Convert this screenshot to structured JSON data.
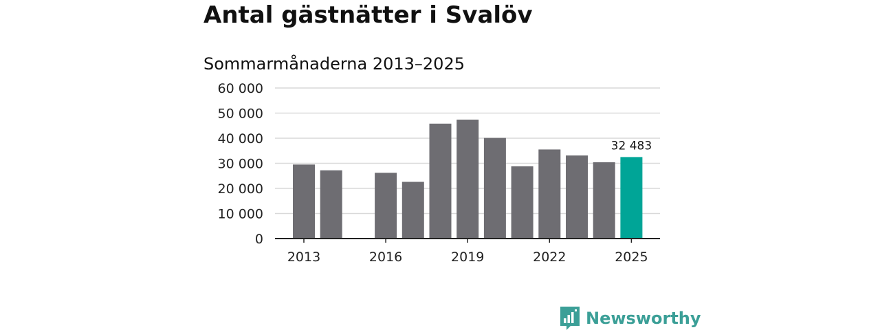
{
  "header": {
    "title": "Antal gästnätter i Svalöv",
    "subtitle": "Sommarmånaderna 2013–2025"
  },
  "brand": {
    "name": "Newsworthy",
    "color": "#3b9f97"
  },
  "chart_data": {
    "type": "bar",
    "title": "Antal gästnätter i Svalöv",
    "subtitle": "Sommarmånaderna 2013–2025",
    "xlabel": "",
    "ylabel": "",
    "categories": [
      "2013",
      "2014",
      "2015",
      "2016",
      "2017",
      "2018",
      "2019",
      "2020",
      "2021",
      "2022",
      "2023",
      "2024",
      "2025"
    ],
    "values": [
      29500,
      27200,
      null,
      26200,
      22600,
      45800,
      47400,
      40100,
      28800,
      35500,
      33100,
      30400,
      32483
    ],
    "ylim": [
      0,
      60000
    ],
    "yticks": [
      0,
      10000,
      20000,
      30000,
      40000,
      50000,
      60000
    ],
    "ytick_labels": [
      "0",
      "10 000",
      "20 000",
      "30 000",
      "40 000",
      "50 000",
      "60 000"
    ],
    "xtick_labels": [
      "2013",
      "2016",
      "2019",
      "2022",
      "2025"
    ],
    "grid": true,
    "legend": "none",
    "colors": {
      "bar": "#6e6d72",
      "highlight": "#00a597",
      "grid": "#d9d9d9",
      "axis": "#222222"
    },
    "highlight_category": "2025",
    "data_labels": [
      {
        "category": "2025",
        "text": "32 483"
      }
    ]
  }
}
